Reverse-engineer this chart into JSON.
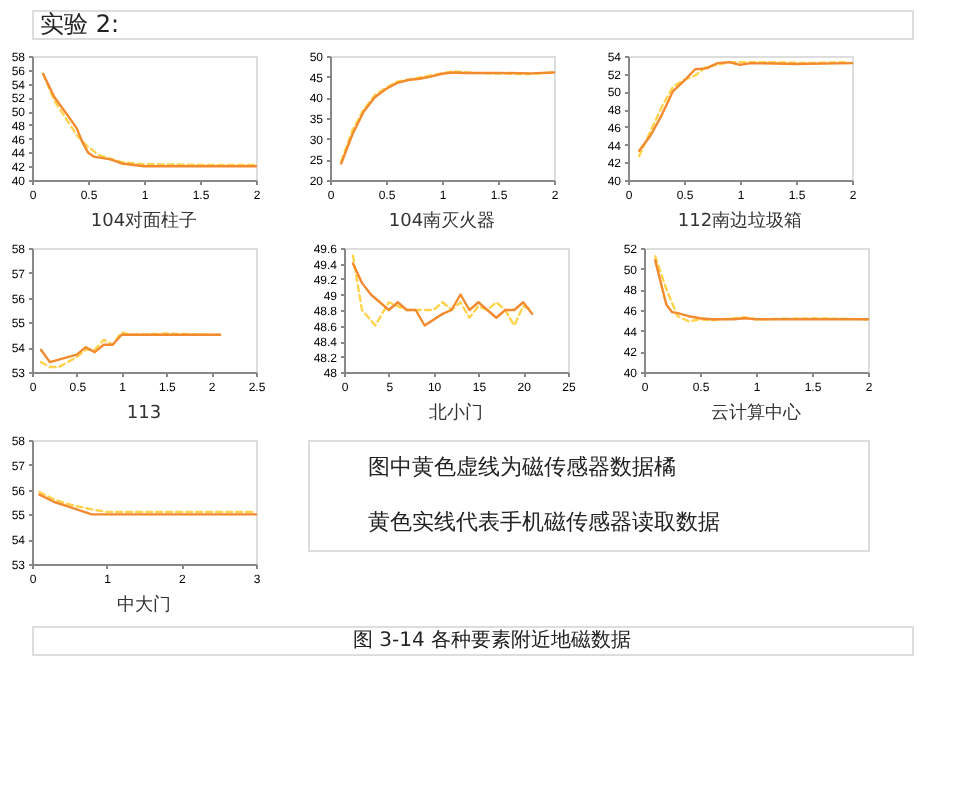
{
  "chart_data": [
    {
      "type": "other",
      "title": "实验 2:"
    },
    {
      "type": "line",
      "title": "104对面柱子",
      "xlim": [
        0,
        2
      ],
      "xticks": [
        0,
        0.5,
        1,
        1.5,
        2
      ],
      "ylim": [
        40,
        58
      ],
      "yticks": [
        40,
        42,
        44,
        46,
        48,
        50,
        52,
        54,
        56,
        58
      ],
      "grid": false,
      "legend": false,
      "marker": "none",
      "series": [
        {
          "color": "#ffd34d",
          "line_style": "dashed",
          "x": [
            0.1,
            0.2,
            0.3,
            0.4,
            0.5,
            0.6,
            0.8,
            1,
            1.5,
            2
          ],
          "values": [
            55.4,
            51.5,
            49,
            46.5,
            44.8,
            43.6,
            42.6,
            42.3,
            42.2,
            42.2
          ]
        },
        {
          "color": "#f28a30",
          "line_style": "solid",
          "x": [
            0.1,
            0.2,
            0.3,
            0.4,
            0.45,
            0.5,
            0.55,
            0.7,
            0.8,
            1,
            1.5,
            2
          ],
          "values": [
            55.4,
            52,
            49.8,
            47.5,
            45.5,
            44,
            43.4,
            43,
            42.4,
            42,
            42,
            42
          ]
        }
      ]
    },
    {
      "type": "line",
      "title": "104南灭火器",
      "xlim": [
        0,
        2
      ],
      "xticks": [
        0,
        0.5,
        1,
        1.5,
        2
      ],
      "ylim": [
        20,
        50
      ],
      "yticks": [
        20,
        25,
        30,
        35,
        40,
        45,
        50
      ],
      "grid": false,
      "legend": false,
      "marker": "none",
      "series": [
        {
          "color": "#ffd34d",
          "line_style": "dashed",
          "x": [
            0.1,
            0.2,
            0.3,
            0.4,
            0.5,
            0.6,
            0.7,
            0.8,
            1,
            1.1,
            1.3,
            1.75,
            2
          ],
          "values": [
            24.5,
            32,
            37,
            40.5,
            42.3,
            43.8,
            44.3,
            44.8,
            45.8,
            46.3,
            45.9,
            45.6,
            46
          ]
        },
        {
          "color": "#f28a30",
          "line_style": "solid",
          "x": [
            0.1,
            0.2,
            0.3,
            0.4,
            0.5,
            0.6,
            0.7,
            0.8,
            0.9,
            1,
            1.1,
            1.2,
            1.5,
            1.8,
            2
          ],
          "values": [
            24,
            31,
            36.5,
            40,
            42,
            43.5,
            44.2,
            44.5,
            45,
            45.7,
            46,
            45.9,
            45.9,
            45.8,
            46
          ]
        }
      ]
    },
    {
      "type": "line",
      "title": "112南边垃圾箱",
      "xlim": [
        0,
        2
      ],
      "xticks": [
        0,
        0.5,
        1,
        1.5,
        2
      ],
      "ylim": [
        40,
        54
      ],
      "yticks": [
        40,
        42,
        44,
        46,
        48,
        50,
        52,
        54
      ],
      "grid": false,
      "legend": false,
      "marker": "none",
      "series": [
        {
          "color": "#ffd34d",
          "line_style": "dashed",
          "x": [
            0.1,
            0.2,
            0.3,
            0.4,
            0.5,
            0.6,
            0.7,
            0.8,
            0.9,
            1.1,
            1.3,
            1.6,
            1.9,
            2
          ],
          "values": [
            42.7,
            45.5,
            48.2,
            50.5,
            51.3,
            51.8,
            52.8,
            53,
            53.3,
            53.3,
            53.3,
            53.2,
            53.3,
            53.2
          ]
        },
        {
          "color": "#f28a30",
          "line_style": "solid",
          "x": [
            0.1,
            0.2,
            0.3,
            0.4,
            0.5,
            0.6,
            0.7,
            0.8,
            0.9,
            1,
            1.1,
            1.5,
            2
          ],
          "values": [
            43.3,
            45,
            47.3,
            50,
            51.2,
            52.5,
            52.6,
            53.2,
            53.3,
            53,
            53.2,
            53.1,
            53.2
          ]
        }
      ]
    },
    {
      "type": "line",
      "title": "113",
      "xlim": [
        0,
        2.5
      ],
      "xticks": [
        0,
        0.5,
        1,
        1.5,
        2,
        2.5
      ],
      "ylim": [
        53,
        58
      ],
      "yticks": [
        53,
        54,
        55,
        56,
        57,
        58
      ],
      "grid": false,
      "legend": false,
      "marker": "none",
      "series": [
        {
          "color": "#ffd34d",
          "line_style": "dashed",
          "x": [
            0.1,
            0.2,
            0.3,
            0.5,
            0.6,
            0.7,
            0.8,
            0.9,
            1,
            1.1,
            1.5,
            2.1
          ],
          "values": [
            53.4,
            53.2,
            53.2,
            53.6,
            53.9,
            53.9,
            54.3,
            54.1,
            54.6,
            54.5,
            54.55,
            54.5
          ]
        },
        {
          "color": "#f28a30",
          "line_style": "solid",
          "x": [
            0.1,
            0.2,
            0.4,
            0.5,
            0.6,
            0.7,
            0.8,
            0.9,
            1,
            1.1,
            2.1
          ],
          "values": [
            53.9,
            53.4,
            53.6,
            53.7,
            54,
            53.8,
            54.1,
            54.1,
            54.5,
            54.5,
            54.5
          ]
        }
      ]
    },
    {
      "type": "line",
      "title": "北小门",
      "xlim": [
        0,
        25
      ],
      "xticks": [
        0,
        5,
        10,
        15,
        20,
        25
      ],
      "ylim": [
        48,
        49.6
      ],
      "yticks": [
        48,
        48.2,
        48.4,
        48.6,
        48.8,
        49,
        49.2,
        49.4,
        49.6
      ],
      "grid": false,
      "legend": false,
      "marker": "none",
      "series": [
        {
          "color": "#ffd34d",
          "line_style": "dashed",
          "x": [
            1,
            2,
            3.5,
            5,
            7,
            10,
            11,
            12,
            13,
            14,
            15,
            16,
            17,
            18,
            19,
            20,
            21
          ],
          "values": [
            49.5,
            48.8,
            48.6,
            48.9,
            48.8,
            48.8,
            48.9,
            48.8,
            48.9,
            48.7,
            48.85,
            48.8,
            48.9,
            48.8,
            48.6,
            48.85,
            48.8
          ]
        },
        {
          "color": "#f28a30",
          "line_style": "solid",
          "x": [
            1,
            2,
            3,
            5,
            6,
            7,
            8,
            9,
            11,
            12,
            13,
            14,
            15,
            16,
            17,
            18,
            19,
            20,
            21
          ],
          "values": [
            49.4,
            49.15,
            49,
            48.8,
            48.9,
            48.8,
            48.8,
            48.6,
            48.75,
            48.8,
            49,
            48.8,
            48.9,
            48.8,
            48.7,
            48.8,
            48.8,
            48.9,
            48.75
          ]
        }
      ]
    },
    {
      "type": "line",
      "title": "云计算中心",
      "xlim": [
        0,
        2
      ],
      "xticks": [
        0,
        0.5,
        1,
        1.5,
        2
      ],
      "ylim": [
        40,
        52
      ],
      "yticks": [
        40,
        42,
        44,
        46,
        48,
        50,
        52
      ],
      "grid": false,
      "legend": false,
      "marker": "none",
      "series": [
        {
          "color": "#ffd34d",
          "line_style": "dashed",
          "x": [
            0.1,
            0.2,
            0.3,
            0.4,
            0.5,
            0.6,
            0.9,
            1,
            1.5,
            2
          ],
          "values": [
            51.2,
            48,
            45.4,
            44.9,
            45.1,
            45,
            45.3,
            45.1,
            45.2,
            45.1
          ]
        },
        {
          "color": "#f28a30",
          "line_style": "solid",
          "x": [
            0.1,
            0.2,
            0.25,
            0.3,
            0.4,
            0.5,
            0.6,
            0.8,
            0.9,
            1,
            2
          ],
          "values": [
            50.8,
            46.5,
            45.8,
            45.7,
            45.4,
            45.2,
            45.1,
            45.1,
            45.2,
            45.1,
            45.1
          ]
        }
      ]
    },
    {
      "type": "line",
      "title": "中大门",
      "xlim": [
        0,
        3
      ],
      "xticks": [
        0,
        1,
        2,
        3
      ],
      "ylim": [
        53,
        58
      ],
      "yticks": [
        53,
        54,
        55,
        56,
        57,
        58
      ],
      "grid": false,
      "legend": false,
      "marker": "none",
      "series": [
        {
          "color": "#ffd34d",
          "line_style": "dashed",
          "x": [
            0.1,
            0.3,
            0.5,
            0.8,
            1,
            2,
            3
          ],
          "values": [
            55.9,
            55.6,
            55.4,
            55.2,
            55.1,
            55.1,
            55.1
          ]
        },
        {
          "color": "#f28a30",
          "line_style": "solid",
          "x": [
            0.1,
            0.3,
            0.5,
            0.8,
            1,
            2,
            3
          ],
          "values": [
            55.8,
            55.5,
            55.3,
            55,
            55,
            55,
            55
          ]
        }
      ]
    },
    {
      "type": "other",
      "annotations": [
        "图中黄色虚线为磁传感器数据橘",
        "黄色实线代表手机磁传感器读取数据"
      ]
    },
    {
      "type": "other",
      "title": "图 3-14 各种要素附近地磁数据"
    }
  ]
}
